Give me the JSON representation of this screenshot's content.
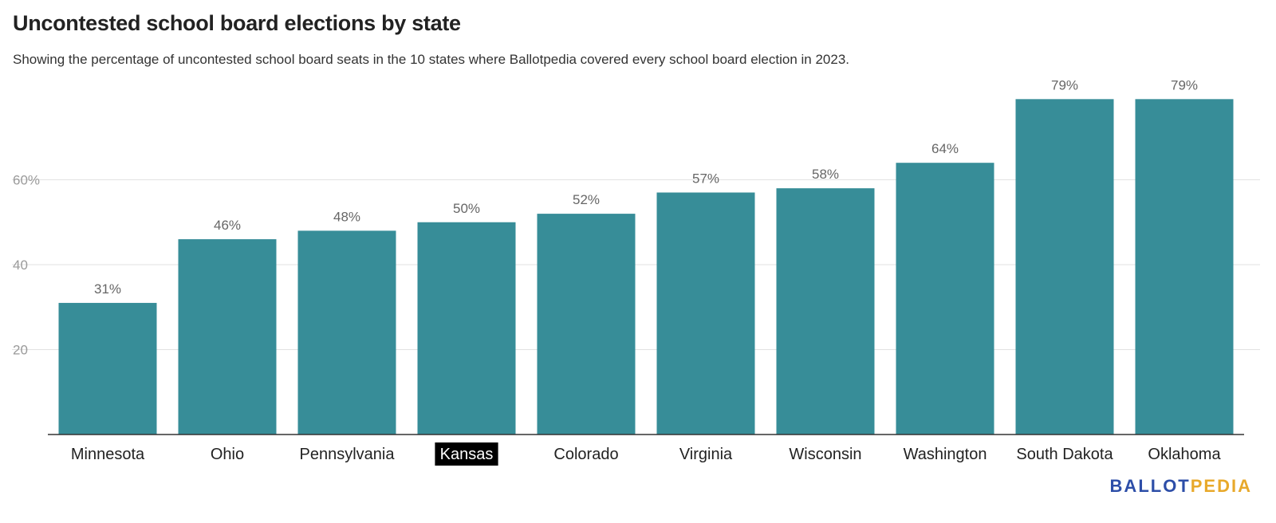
{
  "header": {
    "title": "Uncontested school board elections by state",
    "subtitle": "Showing the percentage of uncontested school board seats in the 10 states where Ballotpedia covered every school board election in 2023."
  },
  "logo": {
    "part1": "BALLOT",
    "part2": "PEDIA",
    "color1": "#2d4ea8",
    "color2": "#e8a92b"
  },
  "chart_data": {
    "type": "bar",
    "title": "Uncontested school board elections by state",
    "subtitle": "Showing the percentage of uncontested school board seats in the 10 states where Ballotpedia covered every school board election in 2023.",
    "categories": [
      "Minnesota",
      "Ohio",
      "Pennsylvania",
      "Kansas",
      "Colorado",
      "Virginia",
      "Wisconsin",
      "Washington",
      "South Dakota",
      "Oklahoma"
    ],
    "values": [
      31,
      46,
      48,
      50,
      52,
      57,
      58,
      64,
      79,
      79
    ],
    "value_labels": [
      "31%",
      "46%",
      "48%",
      "50%",
      "52%",
      "57%",
      "58%",
      "64%",
      "79%",
      "79%"
    ],
    "highlighted_category": "Kansas",
    "ylim": [
      0,
      80
    ],
    "y_ticks": [
      20,
      40,
      60
    ],
    "y_tick_labels": [
      "20",
      "40",
      "60%"
    ],
    "grid": true,
    "bar_color": "#378d98",
    "xlabel": "",
    "ylabel": ""
  }
}
